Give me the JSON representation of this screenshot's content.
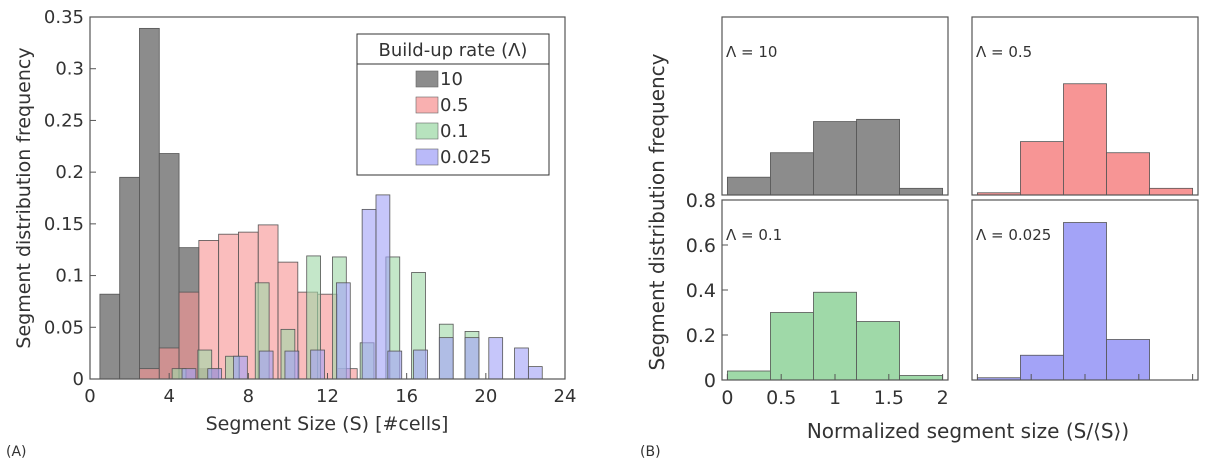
{
  "panel_labels": {
    "a": "(A)",
    "b": "(B)"
  },
  "chart_data": [
    {
      "type": "bar",
      "id": "histogram-A",
      "xlabel": "Segment Size (S) [#cells]",
      "ylabel": "Segment distribution frequency",
      "xlim": [
        0,
        24
      ],
      "ylim": [
        0,
        0.35
      ],
      "xticks": [
        0,
        4,
        8,
        12,
        16,
        20,
        24
      ],
      "yticks": [
        0,
        0.05,
        0.1,
        0.15,
        0.2,
        0.25,
        0.3,
        0.35
      ],
      "ytick_labels": [
        "0",
        "0.05",
        "0.1",
        "0.15",
        "0.2",
        "0.25",
        "0.3",
        "0.35"
      ],
      "grid": false,
      "legend": {
        "title": "Build-up rate (Λ)",
        "placement": "top-right"
      },
      "series": [
        {
          "name": "10",
          "color": "#8c8c8c",
          "bin_width": 1,
          "bins": [
            1,
            2,
            3,
            4,
            5,
            6
          ],
          "values": [
            0.082,
            0.195,
            0.339,
            0.218,
            0.127,
            0.01
          ]
        },
        {
          "name": "0.5",
          "color": "#f79595",
          "bin_width": 1,
          "bins": [
            3,
            4,
            5,
            6,
            7,
            8,
            9,
            10,
            11,
            12,
            13
          ],
          "values": [
            0.01,
            0.03,
            0.084,
            0.134,
            0.14,
            0.142,
            0.149,
            0.113,
            0.084,
            0.082,
            0.01
          ]
        },
        {
          "name": "0.1",
          "color": "#9fd9a8",
          "bin_width": 0.7,
          "bins": [
            4.5,
            5.8,
            7.2,
            8.7,
            10,
            11.3,
            12.6,
            14,
            15.3,
            16.6,
            18,
            19.3
          ],
          "values": [
            0.01,
            0.028,
            0.022,
            0.093,
            0.048,
            0.119,
            0.118,
            0.035,
            0.118,
            0.103,
            0.053,
            0.046
          ]
        },
        {
          "name": "0.025",
          "color": "#a3a3f7",
          "bin_width": 0.7,
          "bins": [
            5,
            6.3,
            7.6,
            8.9,
            10.2,
            11.5,
            12.8,
            14.1,
            14.8,
            15.4,
            16.7,
            18,
            19.3,
            20.5,
            21.8,
            22.5
          ],
          "values": [
            0.01,
            0.01,
            0.022,
            0.027,
            0.027,
            0.028,
            0.093,
            0.164,
            0.178,
            0.027,
            0.028,
            0.04,
            0.04,
            0.04,
            0.03,
            0.012
          ]
        }
      ]
    },
    {
      "type": "bar",
      "id": "histograms-B",
      "xlabel": "Normalized segment size (S/⟨S⟩)",
      "ylabel": "Segment distribution frequency",
      "xlim": [
        -0.05,
        2.05
      ],
      "ylim": [
        0,
        0.8
      ],
      "xticks": [
        0,
        0.5,
        1,
        1.5,
        2
      ],
      "xtick_labels": [
        "0",
        "0.5",
        "1",
        "1.5",
        "2"
      ],
      "yticks": [
        0,
        0.2,
        0.4,
        0.6,
        0.8
      ],
      "ytick_labels": [
        "0",
        "0.2",
        "0.4",
        "0.6",
        "0.8"
      ],
      "bin_edges": [
        0,
        0.4,
        0.8,
        1.2,
        1.6,
        2.0
      ],
      "panels": [
        {
          "label": "Λ = 10",
          "color": "#8c8c8c",
          "values": [
            0.08,
            0.19,
            0.33,
            0.34,
            0.03
          ]
        },
        {
          "label": "Λ = 0.5",
          "color": "#f79595",
          "values": [
            0.01,
            0.24,
            0.5,
            0.19,
            0.03
          ]
        },
        {
          "label": "Λ = 0.1",
          "color": "#9fd9a8",
          "values": [
            0.04,
            0.3,
            0.39,
            0.26,
            0.02
          ]
        },
        {
          "label": "Λ = 0.025",
          "color": "#a3a3f7",
          "values": [
            0.01,
            0.11,
            0.7,
            0.18,
            0
          ]
        }
      ]
    }
  ]
}
